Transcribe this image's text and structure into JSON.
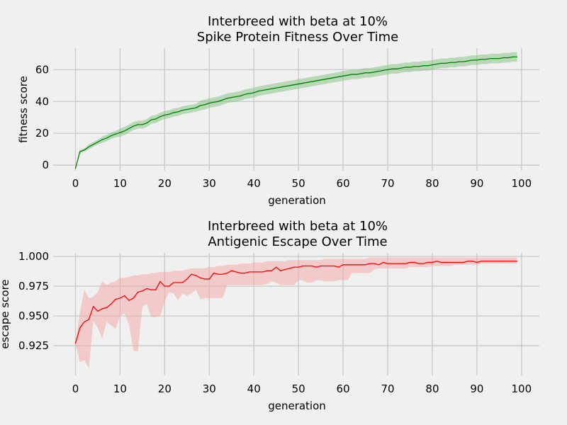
{
  "chart_data": [
    {
      "type": "line",
      "title": "Interbreed with beta at 10%\nSpike Protein Fitness Over Time",
      "title_lines": [
        "Interbreed with beta at 10%",
        "Spike Protein Fitness Over Time"
      ],
      "xlabel": "generation",
      "ylabel": "fitness score",
      "xlim": [
        -5,
        104
      ],
      "ylim": [
        -3.5,
        73.5
      ],
      "xticks": [
        0,
        10,
        20,
        30,
        40,
        50,
        60,
        70,
        80,
        90,
        100
      ],
      "yticks": [
        0,
        20,
        40,
        60
      ],
      "xtick_labels": [
        "0",
        "10",
        "20",
        "30",
        "40",
        "50",
        "60",
        "70",
        "80",
        "90",
        "100"
      ],
      "ytick_labels": [
        "0",
        "20",
        "40",
        "60"
      ],
      "grid": true,
      "line_color": "#008000",
      "band_color": "#7fbf7f",
      "x": [
        0,
        1,
        2,
        3,
        4,
        5,
        6,
        7,
        8,
        9,
        10,
        11,
        12,
        13,
        14,
        15,
        16,
        17,
        18,
        19,
        20,
        21,
        22,
        23,
        24,
        25,
        26,
        27,
        28,
        29,
        30,
        31,
        32,
        33,
        34,
        35,
        36,
        37,
        38,
        39,
        40,
        41,
        42,
        43,
        44,
        45,
        46,
        47,
        48,
        49,
        50,
        51,
        52,
        53,
        54,
        55,
        56,
        57,
        58,
        59,
        60,
        61,
        62,
        63,
        64,
        65,
        66,
        67,
        68,
        69,
        70,
        71,
        72,
        73,
        74,
        75,
        76,
        77,
        78,
        79,
        80,
        81,
        82,
        83,
        84,
        85,
        86,
        87,
        88,
        89,
        90,
        91,
        92,
        93,
        94,
        95,
        96,
        97,
        98,
        99
      ],
      "series": [
        {
          "values": [
            -2,
            8.5,
            9.5,
            11.5,
            13,
            14.5,
            16,
            17,
            18.5,
            19.5,
            20.5,
            21.5,
            23,
            24.5,
            25.5,
            25.5,
            26.5,
            28.5,
            29,
            30.5,
            31.5,
            32,
            33,
            33.5,
            34.5,
            35,
            35.5,
            36,
            37.5,
            38,
            39,
            39.5,
            40,
            41,
            42,
            42.5,
            43,
            43.5,
            44.5,
            45,
            45.5,
            46.5,
            47,
            47.5,
            48,
            48.5,
            49,
            49.5,
            50,
            50.5,
            51,
            51.5,
            52,
            52.5,
            53,
            53.5,
            54,
            54.5,
            55,
            55.5,
            56,
            56.5,
            57,
            57,
            57.5,
            58,
            58,
            58.5,
            59,
            59.5,
            60,
            60.5,
            60.5,
            61,
            61.5,
            61.5,
            62,
            62,
            62.5,
            62.5,
            63,
            63.5,
            64,
            64,
            64.5,
            64.5,
            65,
            65,
            65.5,
            66,
            66,
            66.5,
            66.5,
            67,
            67,
            67,
            67.5,
            67.5,
            68,
            68
          ],
          "lower": [
            -2,
            7.5,
            8.5,
            10,
            11.5,
            13,
            14,
            15,
            16.5,
            17.5,
            18,
            19,
            20.5,
            22,
            23,
            23,
            24,
            26,
            26.5,
            28,
            29,
            29.5,
            30.5,
            31,
            32,
            32.5,
            33,
            33.5,
            34.5,
            35,
            36,
            36.5,
            37,
            38,
            39,
            39.5,
            40,
            40.5,
            41.5,
            42,
            42.5,
            43.5,
            44,
            44.5,
            45,
            45.5,
            46,
            46.5,
            47,
            47.5,
            48,
            48.5,
            49,
            49.5,
            50,
            50.5,
            51,
            51.5,
            52,
            52.5,
            53,
            53.5,
            54,
            54,
            54.5,
            55,
            55,
            55.5,
            56,
            56.5,
            57,
            57.5,
            57.5,
            58,
            58.5,
            58.5,
            59,
            59,
            59.5,
            59.5,
            60,
            60.5,
            61,
            61,
            61.5,
            61.5,
            62,
            62,
            62.5,
            63,
            63,
            63.5,
            63.5,
            64,
            64,
            64,
            64.5,
            64.5,
            65,
            65
          ],
          "upper": [
            -2,
            9.5,
            10.5,
            13,
            14.5,
            16,
            18,
            19,
            20.5,
            21.5,
            23,
            24,
            25.5,
            27,
            28,
            28,
            29,
            31,
            31.5,
            33,
            34,
            34.5,
            35.5,
            36,
            37,
            37.5,
            38,
            38.5,
            40.5,
            41,
            42,
            42.5,
            43,
            44,
            45,
            45.5,
            46,
            46.5,
            47.5,
            48,
            48.5,
            49.5,
            50,
            50.5,
            51,
            51.5,
            52,
            52.5,
            53,
            53.5,
            54,
            54.5,
            55,
            55.5,
            56,
            56.5,
            57,
            57.5,
            58,
            58.5,
            59,
            59.5,
            60,
            60,
            60.5,
            61,
            61,
            61.5,
            62,
            62.5,
            63,
            63.5,
            63.5,
            64,
            64.5,
            64.5,
            65,
            65,
            65.5,
            65.5,
            66,
            66.5,
            67,
            67,
            67.5,
            67.5,
            68,
            68,
            68.5,
            69,
            69,
            69.5,
            69.5,
            70,
            70,
            70,
            70.5,
            70.5,
            71,
            71
          ]
        }
      ]
    },
    {
      "type": "line",
      "title": "Interbreed with beta at 10%\nAntigenic Escape Over Time",
      "title_lines": [
        "Interbreed with beta at 10%",
        "Antigenic Escape Over Time"
      ],
      "xlabel": "generation",
      "ylabel": "escape score",
      "xlim": [
        -5,
        104
      ],
      "ylim": [
        0.9,
        1.003
      ],
      "xticks": [
        0,
        10,
        20,
        30,
        40,
        50,
        60,
        70,
        80,
        90,
        100
      ],
      "yticks": [
        0.925,
        0.95,
        0.975,
        1.0
      ],
      "xtick_labels": [
        "0",
        "10",
        "20",
        "30",
        "40",
        "50",
        "60",
        "70",
        "80",
        "90",
        "100"
      ],
      "ytick_labels": [
        "0.925",
        "0.950",
        "0.975",
        "1.000"
      ],
      "grid": true,
      "line_color": "#ff0000",
      "band_color": "#f4a4a4",
      "x": [
        0,
        1,
        2,
        3,
        4,
        5,
        6,
        7,
        8,
        9,
        10,
        11,
        12,
        13,
        14,
        15,
        16,
        17,
        18,
        19,
        20,
        21,
        22,
        23,
        24,
        25,
        26,
        27,
        28,
        29,
        30,
        31,
        32,
        33,
        34,
        35,
        36,
        37,
        38,
        39,
        40,
        41,
        42,
        43,
        44,
        45,
        46,
        47,
        48,
        49,
        50,
        51,
        52,
        53,
        54,
        55,
        56,
        57,
        58,
        59,
        60,
        61,
        62,
        63,
        64,
        65,
        66,
        67,
        68,
        69,
        70,
        71,
        72,
        73,
        74,
        75,
        76,
        77,
        78,
        79,
        80,
        81,
        82,
        83,
        84,
        85,
        86,
        87,
        88,
        89,
        90,
        91,
        92,
        93,
        94,
        95,
        96,
        97,
        98,
        99
      ],
      "series": [
        {
          "values": [
            0.927,
            0.94,
            0.945,
            0.947,
            0.958,
            0.954,
            0.956,
            0.957,
            0.96,
            0.964,
            0.965,
            0.967,
            0.963,
            0.965,
            0.97,
            0.971,
            0.973,
            0.972,
            0.972,
            0.979,
            0.975,
            0.975,
            0.978,
            0.978,
            0.978,
            0.981,
            0.985,
            0.984,
            0.982,
            0.981,
            0.981,
            0.986,
            0.985,
            0.985,
            0.986,
            0.988,
            0.987,
            0.986,
            0.986,
            0.987,
            0.987,
            0.987,
            0.987,
            0.988,
            0.988,
            0.991,
            0.988,
            0.989,
            0.99,
            0.991,
            0.991,
            0.992,
            0.992,
            0.992,
            0.991,
            0.992,
            0.992,
            0.992,
            0.992,
            0.991,
            0.993,
            0.993,
            0.993,
            0.993,
            0.993,
            0.993,
            0.994,
            0.994,
            0.993,
            0.995,
            0.994,
            0.994,
            0.994,
            0.994,
            0.994,
            0.995,
            0.995,
            0.994,
            0.994,
            0.995,
            0.995,
            0.996,
            0.995,
            0.995,
            0.995,
            0.995,
            0.995,
            0.995,
            0.996,
            0.996,
            0.995,
            0.996,
            0.996,
            0.996,
            0.996,
            0.996,
            0.996,
            0.996,
            0.996,
            0.996
          ],
          "lower": [
            0.927,
            0.911,
            0.913,
            0.906,
            0.946,
            0.94,
            0.931,
            0.945,
            0.942,
            0.939,
            0.95,
            0.952,
            0.943,
            0.921,
            0.92,
            0.958,
            0.96,
            0.949,
            0.949,
            0.95,
            0.962,
            0.97,
            0.969,
            0.963,
            0.969,
            0.967,
            0.969,
            0.972,
            0.964,
            0.965,
            0.965,
            0.965,
            0.965,
            0.965,
            0.976,
            0.976,
            0.976,
            0.976,
            0.976,
            0.976,
            0.976,
            0.976,
            0.976,
            0.977,
            0.979,
            0.978,
            0.976,
            0.976,
            0.976,
            0.976,
            0.98,
            0.98,
            0.978,
            0.978,
            0.98,
            0.98,
            0.979,
            0.979,
            0.979,
            0.98,
            0.98,
            0.98,
            0.986,
            0.986,
            0.986,
            0.986,
            0.986,
            0.989,
            0.99,
            0.99,
            0.99,
            0.99,
            0.99,
            0.99,
            0.99,
            0.991,
            0.991,
            0.991,
            0.991,
            0.991,
            0.992,
            0.992,
            0.992,
            0.992,
            0.992,
            0.993,
            0.993,
            0.993,
            0.993,
            0.993,
            0.993,
            0.994,
            0.994,
            0.994,
            0.994,
            0.994,
            0.994,
            0.994,
            0.994,
            0.994
          ],
          "upper": [
            0.927,
            0.953,
            0.972,
            0.965,
            0.966,
            0.97,
            0.979,
            0.976,
            0.978,
            0.979,
            0.982,
            0.982,
            0.983,
            0.984,
            0.984,
            0.985,
            0.985,
            0.986,
            0.986,
            0.987,
            0.987,
            0.987,
            0.988,
            0.988,
            0.988,
            0.989,
            0.99,
            0.99,
            0.99,
            0.99,
            0.991,
            0.991,
            0.992,
            0.992,
            0.993,
            0.993,
            0.993,
            0.994,
            0.994,
            0.994,
            0.995,
            0.995,
            0.995,
            0.996,
            0.996,
            0.996,
            0.996,
            0.996,
            0.997,
            0.997,
            0.997,
            0.997,
            0.997,
            0.997,
            0.997,
            0.997,
            0.998,
            0.998,
            0.998,
            0.998,
            0.998,
            0.998,
            0.998,
            0.998,
            0.998,
            0.998,
            0.999,
            0.999,
            0.999,
            0.999,
            0.999,
            0.999,
            0.999,
            0.999,
            0.999,
            0.999,
            0.999,
            0.999,
            0.999,
            0.999,
            0.999,
            0.999,
            0.999,
            0.999,
            0.999,
            0.999,
            0.999,
            0.999,
            0.999,
            0.999,
            0.999,
            0.999,
            0.999,
            0.999,
            0.999,
            0.999,
            0.999,
            0.999,
            0.999,
            0.999
          ]
        }
      ]
    }
  ]
}
